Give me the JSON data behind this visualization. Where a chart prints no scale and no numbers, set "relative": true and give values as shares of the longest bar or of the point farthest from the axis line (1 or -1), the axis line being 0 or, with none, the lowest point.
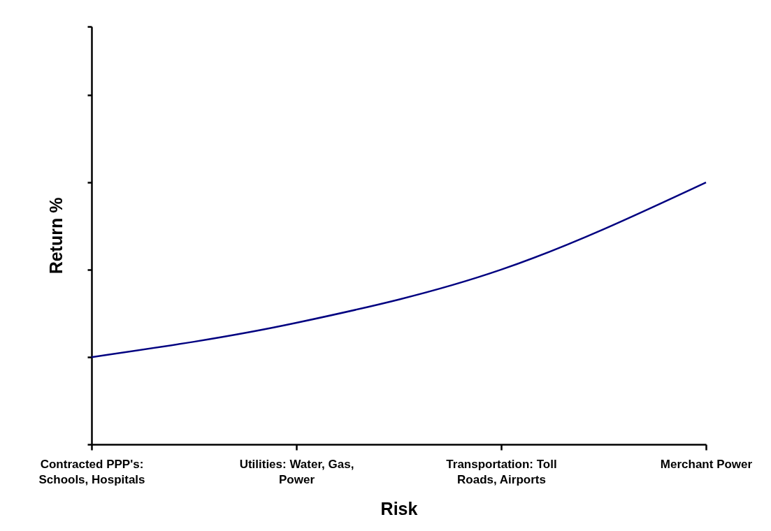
{
  "chart_data": {
    "type": "line",
    "xlabel": "Risk",
    "ylabel": "Return %",
    "relative": true,
    "categories": [
      "Contracted PPP's: Schools, Hospitals",
      "Utilities: Water, Gas, Power",
      "Transportation: Toll Roads, Airports",
      "Merchant Power"
    ],
    "series": [
      {
        "color": "#000080",
        "values": [
          0.333,
          0.464,
          0.667,
          1
        ]
      }
    ],
    "grid": false,
    "marker": "none",
    "line_style": "solid"
  }
}
